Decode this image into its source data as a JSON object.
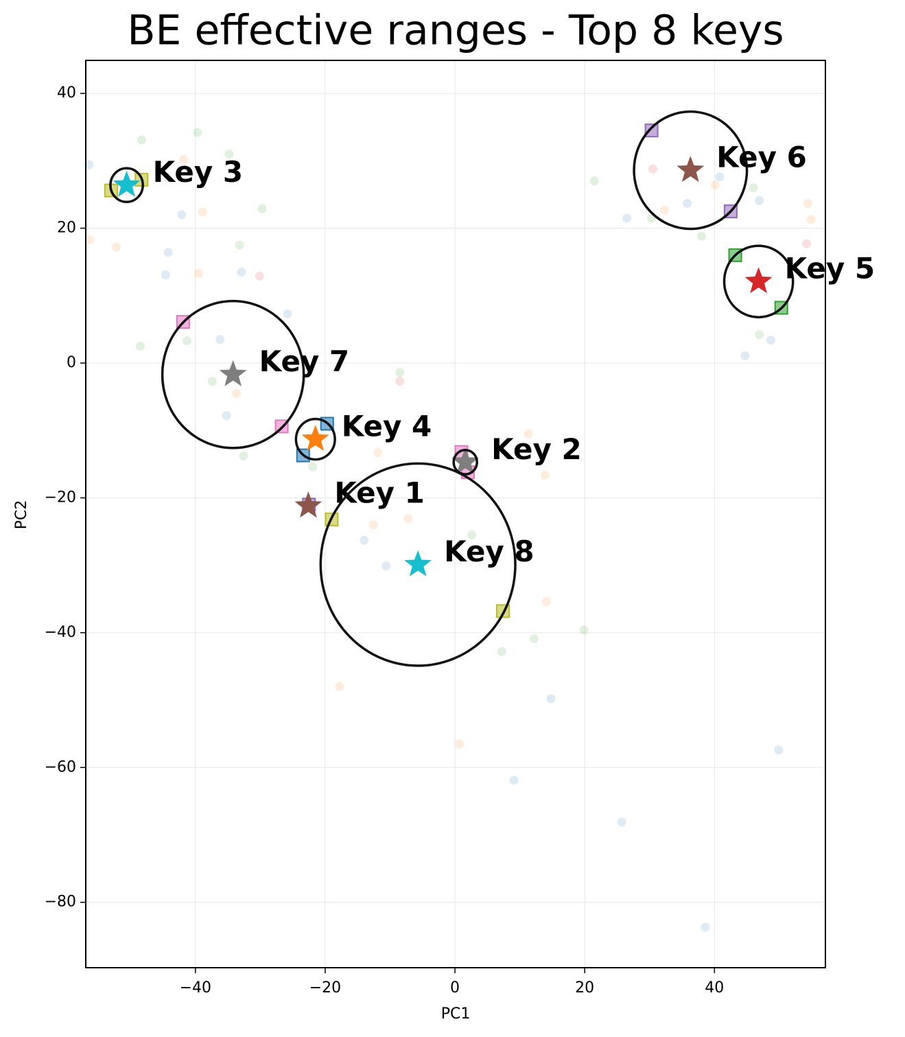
{
  "chart_data": {
    "type": "scatter",
    "title": "BE effective ranges - Top 8 keys",
    "xlabel": "PC1",
    "ylabel": "PC2",
    "xlim": [
      -56.9,
      57.1
    ],
    "ylim": [
      -89.7,
      44.9
    ],
    "xticks": [
      {
        "value": -40,
        "label": "−40"
      },
      {
        "value": -20,
        "label": "−20"
      },
      0,
      20,
      40
    ],
    "yticks": [
      {
        "value": -80,
        "label": "−80"
      },
      {
        "value": -60,
        "label": "−60"
      },
      {
        "value": -40,
        "label": "−40"
      },
      {
        "value": -20,
        "label": "−20"
      },
      0,
      20,
      40
    ],
    "grid": true,
    "series": [
      {
        "marker": "dot",
        "color": "#1f77b4",
        "opacity": 0.15,
        "x": [
          -56.4,
          -42.1,
          -44.2,
          -44.6,
          -32.9,
          -36.2,
          -35.2,
          -25.8,
          -14.0,
          -10.6,
          14.8,
          9.1,
          25.7,
          38.6,
          49.9,
          44.7,
          48.7,
          26.5,
          35.8,
          40.8,
          46.9
        ],
        "y": [
          29.4,
          22.0,
          16.4,
          13.1,
          13.5,
          3.5,
          -7.8,
          7.3,
          -26.3,
          -30.1,
          -49.8,
          -61.9,
          -68.1,
          -83.7,
          -57.4,
          1.1,
          3.4,
          21.5,
          23.7,
          27.6,
          24.1
        ]
      },
      {
        "marker": "dot",
        "color": "#ff7f0e",
        "opacity": 0.15,
        "x": [
          -56.3,
          -52.2,
          -41.8,
          -38.9,
          -39.5,
          -33.7,
          -11.9,
          -7.2,
          -12.6,
          -17.8,
          0.7,
          14.1,
          13.9,
          11.3,
          54.4,
          54.9,
          40.1,
          32.3
        ],
        "y": [
          18.3,
          17.2,
          30.2,
          22.4,
          13.3,
          -4.5,
          -13.3,
          -23.1,
          -24.0,
          -48.0,
          -56.5,
          -35.4,
          -16.6,
          -10.5,
          23.7,
          21.3,
          26.4,
          22.7
        ]
      },
      {
        "marker": "dot",
        "color": "#2ca02c",
        "opacity": 0.15,
        "x": [
          -48.3,
          -39.7,
          -34.8,
          -29.7,
          -33.2,
          -41.3,
          -48.5,
          -37.4,
          -32.6,
          -21.9,
          -8.5,
          2.6,
          7.2,
          12.2,
          19.9,
          21.5,
          30.3,
          38.0,
          46.0,
          46.9
        ],
        "y": [
          33.1,
          34.2,
          31.0,
          22.9,
          17.5,
          3.3,
          2.5,
          -2.7,
          -13.8,
          -15.4,
          -1.4,
          -25.5,
          -42.8,
          -40.9,
          -39.6,
          27.0,
          21.5,
          18.8,
          26.0,
          4.2
        ]
      },
      {
        "marker": "dot",
        "color": "#d62728",
        "opacity": 0.15,
        "x": [
          -30.1,
          -8.5,
          30.5,
          54.2
        ],
        "y": [
          12.9,
          -2.7,
          28.8,
          17.7
        ]
      },
      {
        "marker": "square",
        "color": "#bcbd22",
        "opacity": 0.55,
        "x": [
          -53.0,
          -48.3,
          -19.0,
          7.4
        ],
        "y": [
          25.6,
          27.2,
          -23.2,
          -36.8
        ]
      },
      {
        "marker": "square",
        "color": "#e377c2",
        "opacity": 0.55,
        "x": [
          -41.9,
          -26.7,
          1.0,
          2.0
        ],
        "y": [
          6.1,
          -9.4,
          -13.2,
          -16.2
        ]
      },
      {
        "marker": "square",
        "color": "#1f77b4",
        "opacity": 0.55,
        "x": [
          -19.7,
          -23.4
        ],
        "y": [
          -9.0,
          -13.7
        ]
      },
      {
        "marker": "square",
        "color": "#9467bd",
        "opacity": 0.55,
        "x": [
          30.3,
          42.5,
          -22.5
        ],
        "y": [
          34.5,
          22.5,
          -21.0
        ]
      },
      {
        "marker": "square",
        "color": "#2ca02c",
        "opacity": 0.55,
        "x": [
          43.2,
          50.3
        ],
        "y": [
          16.0,
          8.2
        ]
      }
    ],
    "keys": {
      "labels": [
        "Key 1",
        "Key 2",
        "Key 3",
        "Key 4",
        "Key 5",
        "Key 6",
        "Key 7",
        "Key 8"
      ],
      "x": [
        -22.6,
        1.6,
        -50.6,
        -21.5,
        46.8,
        36.3,
        -34.2,
        -5.7
      ],
      "y": [
        -21.2,
        -14.7,
        26.4,
        -11.3,
        12.1,
        28.6,
        -1.7,
        -29.9
      ],
      "radius": [
        null,
        1.8,
        2.5,
        3.0,
        5.3,
        8.7,
        10.9,
        15.0
      ],
      "colors": [
        "#8c564b",
        "#7f7f7f",
        "#17becf",
        "#ff7f0e",
        "#d62728",
        "#8c564b",
        "#7f7f7f",
        "#17becf"
      ]
    }
  }
}
